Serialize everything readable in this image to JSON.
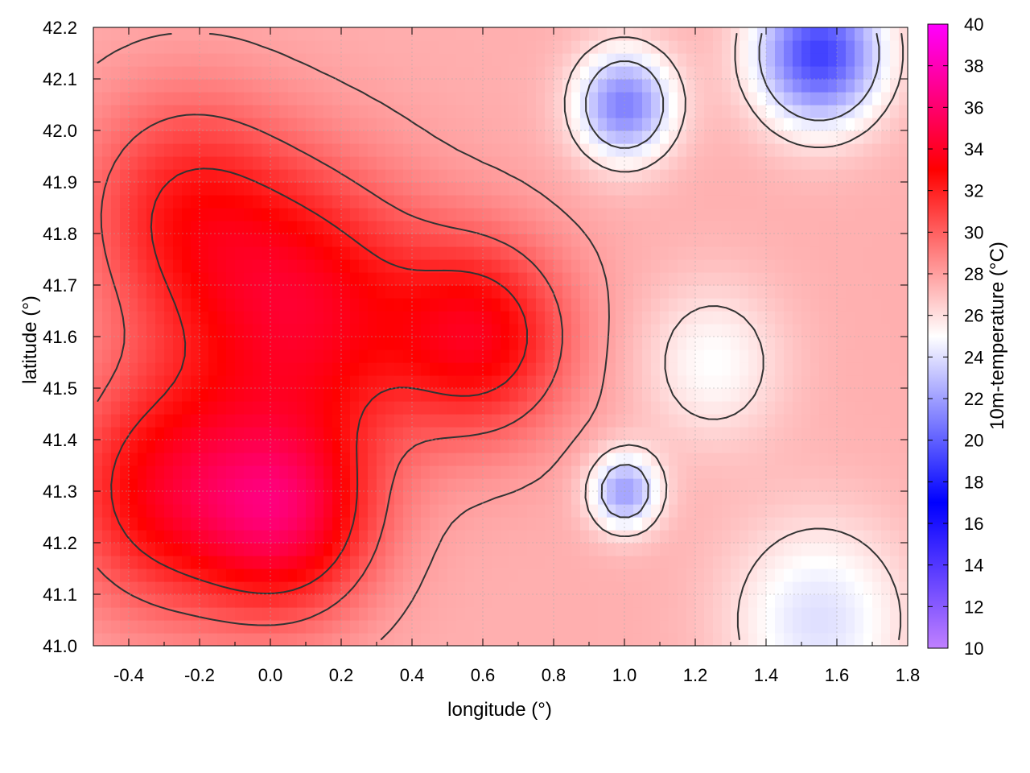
{
  "chart_data": {
    "type": "heatmap",
    "title": "",
    "xlabel": "longitude (°)",
    "ylabel": "latitude (°)",
    "colorbar_label": "10m-temperature (°C)",
    "xlim": [
      -0.5,
      1.8
    ],
    "ylim": [
      41.0,
      42.2
    ],
    "x_ticks": [
      -0.4,
      -0.2,
      0.0,
      0.2,
      0.4,
      0.6,
      0.8,
      1.0,
      1.2,
      1.4,
      1.6,
      1.8
    ],
    "x_tick_labels": [
      "-0.4",
      "-0.2",
      "0.0",
      "0.2",
      "0.4",
      "0.6",
      "0.8",
      "1.0",
      "1.2",
      "1.4",
      "1.6",
      "1.8"
    ],
    "y_ticks": [
      41.0,
      41.1,
      41.2,
      41.3,
      41.4,
      41.5,
      41.6,
      41.7,
      41.8,
      41.9,
      42.0,
      42.1,
      42.2
    ],
    "y_tick_labels": [
      "41.0",
      "41.1",
      "41.2",
      "41.3",
      "41.4",
      "41.5",
      "41.6",
      "41.7",
      "41.8",
      "41.9",
      "42.0",
      "42.1",
      "42.2"
    ],
    "colorbar_range": [
      10,
      40
    ],
    "colorbar_ticks": [
      10,
      12,
      14,
      16,
      18,
      20,
      22,
      24,
      26,
      28,
      30,
      32,
      34,
      36,
      38,
      40
    ],
    "colorbar_tick_labels": [
      "10",
      "12",
      "14",
      "16",
      "18",
      "20",
      "22",
      "24",
      "26",
      "28",
      "30",
      "32",
      "34",
      "36",
      "38",
      "40"
    ],
    "colormap": [
      {
        "value": 10,
        "color": "#c080ff"
      },
      {
        "value": 17,
        "color": "#0000ff"
      },
      {
        "value": 25,
        "color": "#ffffff"
      },
      {
        "value": 33,
        "color": "#ff0000"
      },
      {
        "value": 40,
        "color": "#ff00ff"
      }
    ],
    "grid": true,
    "contour_lines": true,
    "temperature_centers": [
      {
        "lon": 0.1,
        "lat": 41.65,
        "temp": 33.5,
        "spread": 0.35
      },
      {
        "lon": -0.3,
        "lat": 41.3,
        "temp": 33.0,
        "spread": 0.3
      },
      {
        "lon": 0.05,
        "lat": 41.25,
        "temp": 34.0,
        "spread": 0.25
      },
      {
        "lon": 0.6,
        "lat": 41.6,
        "temp": 33.0,
        "spread": 0.25
      },
      {
        "lon": -0.25,
        "lat": 41.85,
        "temp": 31.5,
        "spread": 0.3
      },
      {
        "lon": 1.55,
        "lat": 42.15,
        "temp": 19.0,
        "spread": 0.18
      },
      {
        "lon": 1.0,
        "lat": 42.05,
        "temp": 21.0,
        "spread": 0.14
      },
      {
        "lon": 1.0,
        "lat": 41.3,
        "temp": 22.0,
        "spread": 0.1
      },
      {
        "lon": 1.55,
        "lat": 41.05,
        "temp": 24.0,
        "spread": 0.25
      },
      {
        "lon": 1.25,
        "lat": 41.55,
        "temp": 25.0,
        "spread": 0.2
      }
    ],
    "background_temp": 27.5
  }
}
